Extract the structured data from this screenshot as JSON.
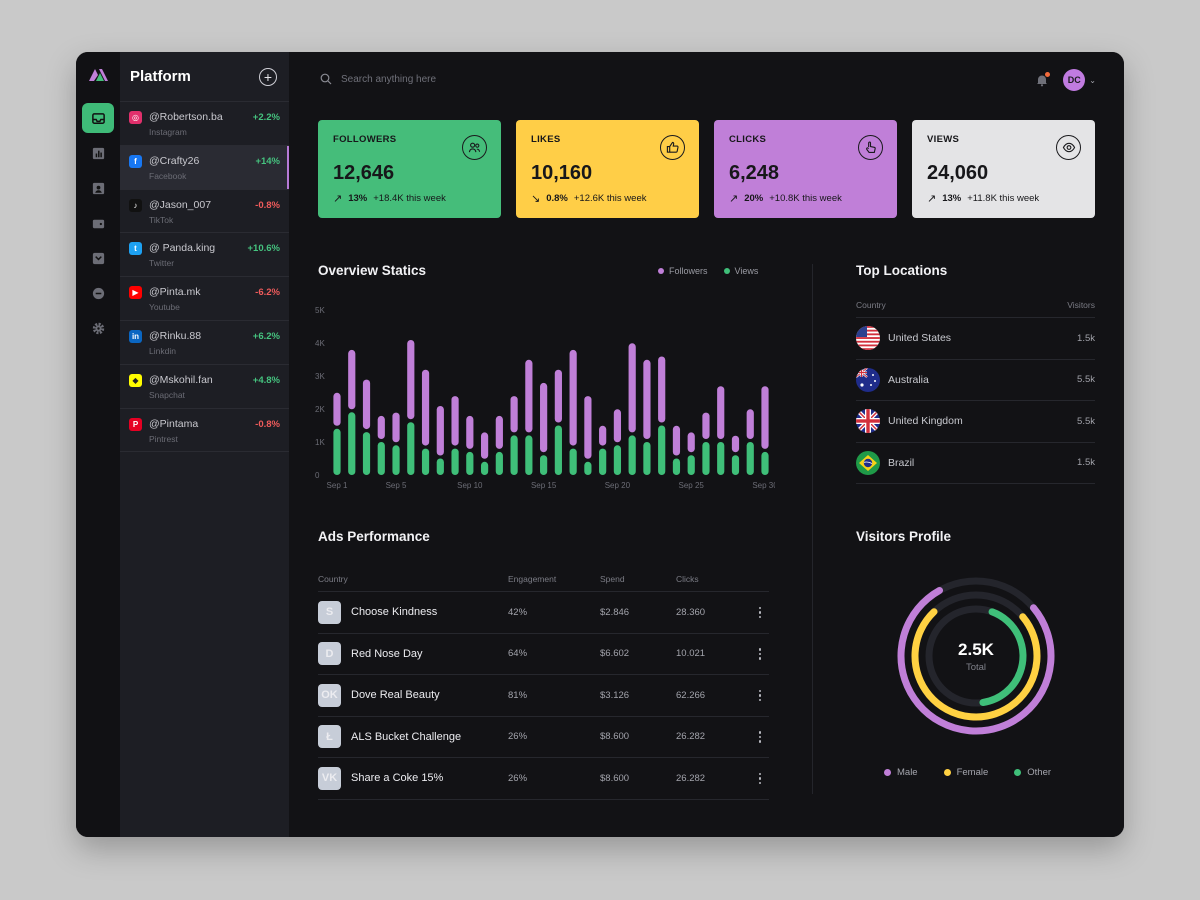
{
  "sidebar": {
    "nav_icons": [
      "inbox-icon",
      "bar-chart-icon",
      "contacts-icon",
      "wallet-icon",
      "archive-icon",
      "chat-icon",
      "gear-icon"
    ]
  },
  "platform": {
    "title": "Platform",
    "add_label": "+",
    "accounts": [
      {
        "handle": "@Robertson.ba",
        "network": "Instagram",
        "change": "+2.2%",
        "trend": "up",
        "icon": "instagram-icon",
        "color": "#e1306c"
      },
      {
        "handle": "@Crafty26",
        "network": "Facebook",
        "change": "+14%",
        "trend": "up",
        "icon": "facebook-icon",
        "color": "#1877f2"
      },
      {
        "handle": "@Jason_007",
        "network": "TikTok",
        "change": "-0.8%",
        "trend": "down",
        "icon": "tiktok-icon",
        "color": "#111111"
      },
      {
        "handle": "@ Panda.king",
        "network": "Twitter",
        "change": "+10.6%",
        "trend": "up",
        "icon": "twitter-icon",
        "color": "#1da1f2"
      },
      {
        "handle": "@Pinta.mk",
        "network": "Youtube",
        "change": "-6.2%",
        "trend": "down",
        "icon": "youtube-icon",
        "color": "#ff0000"
      },
      {
        "handle": "@Rinku.88",
        "network": "Linkdin",
        "change": "+6.2%",
        "trend": "up",
        "icon": "linkedin-icon",
        "color": "#0a66c2"
      },
      {
        "handle": "@Mskohil.fan",
        "network": "Snapchat",
        "change": "+4.8%",
        "trend": "up",
        "icon": "snapchat-icon",
        "color": "#fffc00"
      },
      {
        "handle": "@Pintama",
        "network": "Pintrest",
        "change": "-0.8%",
        "trend": "down",
        "icon": "pinterest-icon",
        "color": "#e60023"
      }
    ]
  },
  "header": {
    "search_placeholder": "Search anything here",
    "avatar_initials": "DC"
  },
  "stats": [
    {
      "label": "FOLLOWERS",
      "value": "12,646",
      "pct": "13%",
      "delta": "+18.4K this week",
      "trend": "up",
      "bg": "#45bd7a",
      "icon": "users-icon"
    },
    {
      "label": "LIKES",
      "value": "10,160",
      "pct": "0.8%",
      "delta": "+12.6K this week",
      "trend": "down",
      "bg": "#ffce47",
      "icon": "thumbs-up-icon"
    },
    {
      "label": "CLICKS",
      "value": "6,248",
      "pct": "20%",
      "delta": "+10.8K this week",
      "trend": "up",
      "bg": "#c07fd8",
      "icon": "pointer-icon"
    },
    {
      "label": "VIEWS",
      "value": "24,060",
      "pct": "13%",
      "delta": "+11.8K this week",
      "trend": "up",
      "bg": "#e4e4e6",
      "icon": "eye-icon"
    }
  ],
  "overview": {
    "title": "Overview Statics",
    "legend": [
      "Followers",
      "Views"
    ]
  },
  "chart_data": {
    "type": "bar",
    "stacked": true,
    "y_ticks": [
      "0",
      "1K",
      "2K",
      "3K",
      "4K",
      "5K"
    ],
    "ylim": [
      0,
      5000
    ],
    "x_tick_labels": [
      "Sep 1",
      "Sep 5",
      "Sep 10",
      "Sep 15",
      "Sep 20",
      "Sep 25",
      "Sep 30"
    ],
    "categories": [
      1,
      2,
      3,
      4,
      5,
      6,
      7,
      8,
      9,
      10,
      11,
      12,
      13,
      14,
      15,
      16,
      17,
      18,
      19,
      20,
      21,
      22,
      23,
      24,
      25,
      26,
      27,
      28,
      29,
      30
    ],
    "series": [
      {
        "name": "Views",
        "color": "#3fbf79",
        "values": [
          1400,
          1900,
          1300,
          1000,
          900,
          1600,
          800,
          500,
          800,
          700,
          400,
          700,
          1200,
          1200,
          600,
          1500,
          800,
          400,
          800,
          900,
          1200,
          1000,
          1500,
          500,
          600,
          1000,
          1000,
          600,
          1000,
          700
        ]
      },
      {
        "name": "Followers",
        "color": "#c07fd8",
        "values": [
          1000,
          1800,
          1500,
          700,
          900,
          2400,
          2300,
          1500,
          1500,
          1000,
          800,
          1000,
          1100,
          2200,
          2100,
          1600,
          2900,
          1900,
          600,
          1000,
          2700,
          2400,
          2000,
          900,
          600,
          800,
          1600,
          500,
          900,
          1900
        ]
      }
    ]
  },
  "locations": {
    "title": "Top Locations",
    "col_country": "Country",
    "col_visitors": "Visitors",
    "rows": [
      {
        "country": "United States",
        "visitors": "1.5k",
        "flag": "us-flag-icon"
      },
      {
        "country": "Australia",
        "visitors": "5.5k",
        "flag": "au-flag-icon"
      },
      {
        "country": "United Kingdom",
        "visitors": "5.5k",
        "flag": "uk-flag-icon"
      },
      {
        "country": "Brazil",
        "visitors": "1.5k",
        "flag": "br-flag-icon"
      }
    ]
  },
  "ads": {
    "title": "Ads Performance",
    "columns": [
      "Country",
      "Engagement",
      "Spend",
      "Clicks"
    ],
    "rows": [
      {
        "name": "Choose Kindness",
        "engagement": "42%",
        "spend": "$2.846",
        "clicks": "28.360",
        "logo": "S",
        "icon": "skype-logo-icon"
      },
      {
        "name": "Red Nose Day",
        "engagement": "64%",
        "spend": "$6.602",
        "clicks": "10.021",
        "logo": "D",
        "icon": "dash-logo-icon"
      },
      {
        "name": "Dove Real Beauty",
        "engagement": "81%",
        "spend": "$3.126",
        "clicks": "62.266",
        "logo": "OK",
        "icon": "odnoklassniki-logo-icon"
      },
      {
        "name": "ALS Bucket Challenge",
        "engagement": "26%",
        "spend": "$8.600",
        "clicks": "26.282",
        "logo": "Ł",
        "icon": "litecoin-logo-icon"
      },
      {
        "name": "Share a Coke 15%",
        "engagement": "26%",
        "spend": "$8.600",
        "clicks": "26.282",
        "logo": "VK",
        "icon": "vk-logo-icon"
      }
    ]
  },
  "visitors": {
    "title": "Visitors Profile",
    "total": "2.5K",
    "total_label": "Total",
    "legend": [
      {
        "label": "Male",
        "color": "#c07fd8",
        "fraction": 0.78
      },
      {
        "label": "Female",
        "color": "#ffd142",
        "fraction": 0.74
      },
      {
        "label": "Other",
        "color": "#3fbf79",
        "fraction": 0.42
      }
    ]
  }
}
